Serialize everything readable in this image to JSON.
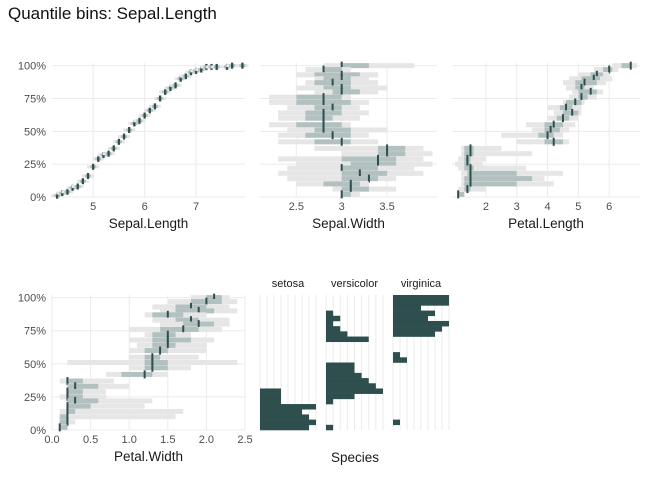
{
  "title": "Quantile bins: Sepal.Length",
  "colors": {
    "dark": "#2f4f4f",
    "mid": "#b2c0c0",
    "light": "#e6e6e6",
    "grid": "#ebebeb"
  },
  "chart_data": [
    {
      "type": "line",
      "panel": "Sepal.Length",
      "xlabel": "Sepal.Length",
      "xlim": [
        4.2,
        7.95
      ],
      "xticks": [
        5,
        6,
        7
      ],
      "ylim": [
        0,
        1.02
      ],
      "yticks": [
        0,
        0.25,
        0.5,
        0.75,
        1.0
      ],
      "ytick_labels": [
        "0%",
        "25%",
        "50%",
        "75%",
        "100%"
      ],
      "x": [
        4.3,
        4.4,
        4.5,
        4.6,
        4.7,
        4.8,
        4.9,
        5.0,
        5.1,
        5.2,
        5.3,
        5.4,
        5.5,
        5.6,
        5.7,
        5.8,
        5.9,
        6.0,
        6.1,
        6.2,
        6.3,
        6.4,
        6.5,
        6.6,
        6.7,
        6.8,
        6.9,
        7.0,
        7.1,
        7.2,
        7.3,
        7.4,
        7.6,
        7.7,
        7.9
      ],
      "y": [
        0.01,
        0.03,
        0.04,
        0.07,
        0.08,
        0.12,
        0.16,
        0.23,
        0.29,
        0.32,
        0.33,
        0.37,
        0.42,
        0.46,
        0.51,
        0.56,
        0.58,
        0.62,
        0.66,
        0.69,
        0.75,
        0.8,
        0.83,
        0.85,
        0.9,
        0.92,
        0.95,
        0.96,
        0.97,
        0.99,
        0.99,
        0.99,
        0.99,
        1.0,
        1.0
      ]
    },
    {
      "type": "range",
      "panel": "Sepal.Width",
      "xlabel": "Sepal.Width",
      "xlim": [
        2.1,
        4.05
      ],
      "xticks": [
        2.5,
        3.0,
        3.5
      ],
      "ylim": [
        0,
        1.02
      ],
      "yticks": [
        0,
        0.25,
        0.5,
        0.75,
        1.0
      ],
      "series": [
        {
          "y": 1.0,
          "lo": 2.8,
          "hi": 3.8,
          "q1": 3.0,
          "q3": 3.3,
          "med": 3.0
        },
        {
          "y": 0.97,
          "lo": 2.6,
          "hi": 3.1,
          "q1": 2.8,
          "q3": 3.0,
          "med": 2.8
        },
        {
          "y": 0.93,
          "lo": 2.5,
          "hi": 3.4,
          "q1": 2.7,
          "q3": 3.2,
          "med": 3.0
        },
        {
          "y": 0.9,
          "lo": 2.7,
          "hi": 3.3,
          "q1": 2.8,
          "q3": 3.1,
          "med": 3.0
        },
        {
          "y": 0.87,
          "lo": 2.6,
          "hi": 3.4,
          "q1": 2.7,
          "q3": 3.1,
          "med": 2.9
        },
        {
          "y": 0.83,
          "lo": 2.5,
          "hi": 3.5,
          "q1": 2.8,
          "q3": 3.1,
          "med": 3.0
        },
        {
          "y": 0.8,
          "lo": 2.7,
          "hi": 3.4,
          "q1": 2.9,
          "q3": 3.2,
          "med": 3.0
        },
        {
          "y": 0.76,
          "lo": 2.2,
          "hi": 3.1,
          "q1": 2.5,
          "q3": 3.0,
          "med": 2.8
        },
        {
          "y": 0.72,
          "lo": 2.2,
          "hi": 3.3,
          "q1": 2.5,
          "q3": 3.1,
          "med": 2.8
        },
        {
          "y": 0.68,
          "lo": 2.4,
          "hi": 3.2,
          "q1": 2.7,
          "q3": 3.0,
          "med": 2.9
        },
        {
          "y": 0.64,
          "lo": 2.3,
          "hi": 3.3,
          "q1": 2.6,
          "q3": 3.0,
          "med": 2.8
        },
        {
          "y": 0.6,
          "lo": 2.3,
          "hi": 3.2,
          "q1": 2.6,
          "q3": 2.9,
          "med": 2.8
        },
        {
          "y": 0.55,
          "lo": 2.2,
          "hi": 3.1,
          "q1": 2.5,
          "q3": 3.0,
          "med": 2.8
        },
        {
          "y": 0.51,
          "lo": 2.4,
          "hi": 3.5,
          "q1": 2.7,
          "q3": 3.1,
          "med": 2.8
        },
        {
          "y": 0.47,
          "lo": 2.3,
          "hi": 3.3,
          "q1": 2.6,
          "q3": 3.1,
          "med": 2.9
        },
        {
          "y": 0.42,
          "lo": 2.3,
          "hi": 3.4,
          "q1": 2.7,
          "q3": 3.1,
          "med": 3.0
        },
        {
          "y": 0.37,
          "lo": 2.7,
          "hi": 3.9,
          "q1": 3.4,
          "q3": 3.7,
          "med": 3.5
        },
        {
          "y": 0.33,
          "lo": 3.0,
          "hi": 4.0,
          "q1": 3.4,
          "q3": 3.7,
          "med": 3.5
        },
        {
          "y": 0.29,
          "lo": 2.3,
          "hi": 3.9,
          "q1": 3.0,
          "q3": 3.6,
          "med": 3.4
        },
        {
          "y": 0.25,
          "lo": 2.5,
          "hi": 4.0,
          "q1": 3.1,
          "q3": 3.6,
          "med": 3.4
        },
        {
          "y": 0.22,
          "lo": 2.4,
          "hi": 3.8,
          "q1": 3.0,
          "q3": 3.4,
          "med": 3.0
        },
        {
          "y": 0.18,
          "lo": 2.3,
          "hi": 3.9,
          "q1": 3.0,
          "q3": 3.5,
          "med": 3.2
        },
        {
          "y": 0.14,
          "lo": 2.4,
          "hi": 3.6,
          "q1": 3.0,
          "q3": 3.4,
          "med": 3.3
        },
        {
          "y": 0.1,
          "lo": 2.5,
          "hi": 3.3,
          "q1": 2.8,
          "q3": 3.2,
          "med": 3.1
        },
        {
          "y": 0.06,
          "lo": 2.9,
          "hi": 3.6,
          "q1": 3.0,
          "q3": 3.3,
          "med": 3.1
        },
        {
          "y": 0.02,
          "lo": 3.0,
          "hi": 3.2,
          "q1": 3.0,
          "q3": 3.1,
          "med": 3.0
        }
      ]
    },
    {
      "type": "range",
      "panel": "Petal.Length",
      "xlabel": "Petal.Length",
      "xlim": [
        0.9,
        7.0
      ],
      "xticks": [
        2,
        3,
        4,
        5,
        6
      ],
      "ylim": [
        0,
        1.02
      ],
      "yticks": [
        0,
        0.25,
        0.5,
        0.75,
        1.0
      ],
      "series": [
        {
          "y": 1.0,
          "lo": 6.1,
          "hi": 6.9,
          "q1": 6.4,
          "q3": 6.7,
          "med": 6.7
        },
        {
          "y": 0.97,
          "lo": 5.5,
          "hi": 6.3,
          "q1": 5.8,
          "q3": 6.1,
          "med": 6.0
        },
        {
          "y": 0.93,
          "lo": 5.0,
          "hi": 6.0,
          "q1": 5.4,
          "q3": 5.8,
          "med": 5.6
        },
        {
          "y": 0.9,
          "lo": 4.7,
          "hi": 6.1,
          "q1": 5.1,
          "q3": 5.7,
          "med": 5.5
        },
        {
          "y": 0.87,
          "lo": 4.5,
          "hi": 5.9,
          "q1": 4.9,
          "q3": 5.6,
          "med": 5.2
        },
        {
          "y": 0.83,
          "lo": 4.6,
          "hi": 5.5,
          "q1": 4.9,
          "q3": 5.2,
          "med": 5.1
        },
        {
          "y": 0.8,
          "lo": 4.8,
          "hi": 5.8,
          "q1": 5.0,
          "q3": 5.6,
          "med": 5.4
        },
        {
          "y": 0.76,
          "lo": 4.7,
          "hi": 5.6,
          "q1": 5.0,
          "q3": 5.3,
          "med": 5.1
        },
        {
          "y": 0.72,
          "lo": 4.5,
          "hi": 5.2,
          "q1": 4.6,
          "q3": 5.1,
          "med": 4.9
        },
        {
          "y": 0.68,
          "lo": 4.0,
          "hi": 5.1,
          "q1": 4.4,
          "q3": 4.8,
          "med": 4.6
        },
        {
          "y": 0.64,
          "lo": 4.2,
          "hi": 5.1,
          "q1": 4.5,
          "q3": 5.0,
          "med": 4.8
        },
        {
          "y": 0.6,
          "lo": 4.0,
          "hi": 5.0,
          "q1": 4.3,
          "q3": 4.7,
          "med": 4.5
        },
        {
          "y": 0.55,
          "lo": 3.3,
          "hi": 4.9,
          "q1": 3.9,
          "q3": 4.5,
          "med": 4.2
        },
        {
          "y": 0.51,
          "lo": 3.5,
          "hi": 4.7,
          "q1": 3.9,
          "q3": 4.4,
          "med": 4.1
        },
        {
          "y": 0.47,
          "lo": 2.5,
          "hi": 4.5,
          "q1": 3.7,
          "q3": 4.2,
          "med": 4.0
        },
        {
          "y": 0.42,
          "lo": 3.0,
          "hi": 4.7,
          "q1": 3.9,
          "q3": 4.5,
          "med": 4.2
        },
        {
          "y": 0.37,
          "lo": 1.2,
          "hi": 2.5,
          "q1": 1.3,
          "q3": 1.6,
          "med": 1.5
        },
        {
          "y": 0.33,
          "lo": 1.2,
          "hi": 3.5,
          "q1": 1.3,
          "q3": 1.6,
          "med": 1.5
        },
        {
          "y": 0.29,
          "lo": 1.1,
          "hi": 2.0,
          "q1": 1.3,
          "q3": 1.5,
          "med": 1.4
        },
        {
          "y": 0.25,
          "lo": 1.0,
          "hi": 1.9,
          "q1": 1.3,
          "q3": 1.5,
          "med": 1.4
        },
        {
          "y": 0.22,
          "lo": 1.1,
          "hi": 3.3,
          "q1": 1.3,
          "q3": 1.6,
          "med": 1.5
        },
        {
          "y": 0.18,
          "lo": 1.2,
          "hi": 4.5,
          "q1": 1.4,
          "q3": 3.0,
          "med": 1.5
        },
        {
          "y": 0.14,
          "lo": 1.2,
          "hi": 3.9,
          "q1": 1.3,
          "q3": 3.5,
          "med": 1.5
        },
        {
          "y": 0.1,
          "lo": 1.2,
          "hi": 4.2,
          "q1": 1.3,
          "q3": 3.0,
          "med": 1.5
        },
        {
          "y": 0.06,
          "lo": 1.1,
          "hi": 2.0,
          "q1": 1.3,
          "q3": 1.5,
          "med": 1.4
        },
        {
          "y": 0.02,
          "lo": 1.1,
          "hi": 1.3,
          "q1": 1.1,
          "q3": 1.3,
          "med": 1.1
        }
      ]
    },
    {
      "type": "range",
      "panel": "Petal.Width",
      "xlabel": "Petal.Width",
      "xlim": [
        0,
        2.5
      ],
      "xticks": [
        0.0,
        0.5,
        1.0,
        1.5,
        2.0,
        2.5
      ],
      "xtick_labels": [
        "0.0",
        "0.5",
        "1.0",
        "1.5",
        "2.0",
        "2.5"
      ],
      "ylim": [
        0,
        1.02
      ],
      "yticks": [
        0,
        0.25,
        0.5,
        0.75,
        1.0
      ],
      "series": [
        {
          "y": 1.0,
          "lo": 1.8,
          "hi": 2.3,
          "q1": 2.0,
          "q3": 2.2,
          "med": 2.1
        },
        {
          "y": 0.97,
          "lo": 1.5,
          "hi": 2.4,
          "q1": 1.8,
          "q3": 2.2,
          "med": 2.0
        },
        {
          "y": 0.93,
          "lo": 1.3,
          "hi": 2.3,
          "q1": 1.6,
          "q3": 2.0,
          "med": 1.8
        },
        {
          "y": 0.9,
          "lo": 1.4,
          "hi": 2.4,
          "q1": 1.6,
          "q3": 2.1,
          "med": 1.9
        },
        {
          "y": 0.87,
          "lo": 1.2,
          "hi": 2.0,
          "q1": 1.3,
          "q3": 1.7,
          "med": 1.5
        },
        {
          "y": 0.83,
          "lo": 1.3,
          "hi": 2.3,
          "q1": 1.6,
          "q3": 1.9,
          "med": 1.8
        },
        {
          "y": 0.8,
          "lo": 1.4,
          "hi": 2.3,
          "q1": 1.7,
          "q3": 2.1,
          "med": 1.9
        },
        {
          "y": 0.76,
          "lo": 1.0,
          "hi": 2.2,
          "q1": 1.4,
          "q3": 1.9,
          "med": 1.7
        },
        {
          "y": 0.72,
          "lo": 1.2,
          "hi": 1.8,
          "q1": 1.3,
          "q3": 1.6,
          "med": 1.5
        },
        {
          "y": 0.68,
          "lo": 1.0,
          "hi": 2.1,
          "q1": 1.3,
          "q3": 1.8,
          "med": 1.5
        },
        {
          "y": 0.64,
          "lo": 1.1,
          "hi": 2.0,
          "q1": 1.3,
          "q3": 1.6,
          "med": 1.5
        },
        {
          "y": 0.6,
          "lo": 1.0,
          "hi": 2.0,
          "q1": 1.2,
          "q3": 1.5,
          "med": 1.4
        },
        {
          "y": 0.55,
          "lo": 1.0,
          "hi": 1.9,
          "q1": 1.2,
          "q3": 1.4,
          "med": 1.3
        },
        {
          "y": 0.51,
          "lo": 0.2,
          "hi": 2.4,
          "q1": 1.2,
          "q3": 1.5,
          "med": 1.3
        },
        {
          "y": 0.47,
          "lo": 1.0,
          "hi": 1.8,
          "q1": 1.2,
          "q3": 1.5,
          "med": 1.3
        },
        {
          "y": 0.42,
          "lo": 0.7,
          "hi": 1.5,
          "q1": 0.9,
          "q3": 1.3,
          "med": 1.2
        },
        {
          "y": 0.37,
          "lo": 0.1,
          "hi": 0.8,
          "q1": 0.2,
          "q3": 0.4,
          "med": 0.2
        },
        {
          "y": 0.33,
          "lo": 0.2,
          "hi": 1.0,
          "q1": 0.2,
          "q3": 0.6,
          "med": 0.3
        },
        {
          "y": 0.29,
          "lo": 0.2,
          "hi": 0.7,
          "q1": 0.2,
          "q3": 0.4,
          "med": 0.2
        },
        {
          "y": 0.25,
          "lo": 0.1,
          "hi": 0.7,
          "q1": 0.2,
          "q3": 0.4,
          "med": 0.2
        },
        {
          "y": 0.22,
          "lo": 0.2,
          "hi": 1.3,
          "q1": 0.2,
          "q3": 0.6,
          "med": 0.3
        },
        {
          "y": 0.18,
          "lo": 0.2,
          "hi": 1.2,
          "q1": 0.2,
          "q3": 0.5,
          "med": 0.2
        },
        {
          "y": 0.14,
          "lo": 0.1,
          "hi": 1.7,
          "q1": 0.2,
          "q3": 0.3,
          "med": 0.2
        },
        {
          "y": 0.1,
          "lo": 0.1,
          "hi": 1.6,
          "q1": 0.1,
          "q3": 0.2,
          "med": 0.2
        },
        {
          "y": 0.06,
          "lo": 0.1,
          "hi": 0.3,
          "q1": 0.1,
          "q3": 0.2,
          "med": 0.2
        },
        {
          "y": 0.02,
          "lo": 0.1,
          "hi": 0.2,
          "q1": 0.1,
          "q3": 0.2,
          "med": 0.1
        }
      ]
    },
    {
      "type": "heatmap",
      "panel": "Species",
      "xlabel": "Species",
      "facets": [
        "setosa",
        "versicolor",
        "virginica"
      ],
      "rows": 26,
      "cols": 8,
      "filled_row_extents": {
        "setosa": [
          7,
          8,
          7,
          6,
          8,
          3,
          3,
          3,
          0,
          0,
          0,
          0,
          0,
          0,
          0,
          0,
          0,
          0,
          0,
          0,
          0,
          0,
          0,
          0,
          0,
          0
        ],
        "versicolor": [
          1,
          0,
          0,
          0,
          0,
          1,
          4,
          8,
          7,
          6,
          5,
          4,
          4,
          0,
          0,
          0,
          0,
          6,
          3,
          2,
          1,
          2,
          1,
          0,
          0,
          0
        ],
        "virginica": [
          0,
          1,
          0,
          0,
          0,
          0,
          0,
          0,
          0,
          0,
          0,
          0,
          0,
          2,
          1,
          0,
          0,
          0,
          6,
          7,
          8,
          5,
          6,
          4,
          8,
          8
        ]
      }
    }
  ]
}
